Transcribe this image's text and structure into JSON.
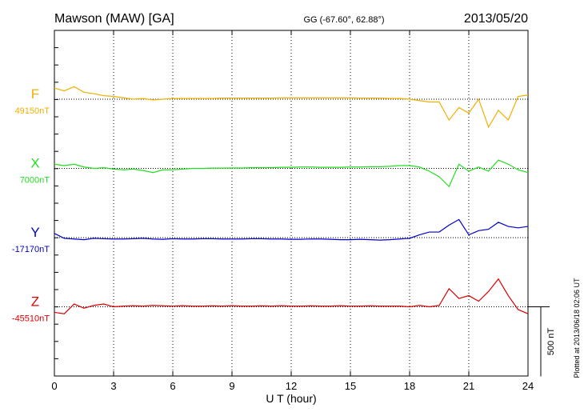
{
  "chart_data": {
    "type": "line",
    "title": "Mawson (MAW)  [GA]",
    "subtitle": "GG (-67.60°,  62.88°)",
    "date": "2013/05/20",
    "xlabel": "U T (hour)",
    "note": "Plotted at 2013/06/18 02:06 UT",
    "scale_bar": {
      "value": 500,
      "label": "500 nT"
    },
    "xlim": [
      0,
      24
    ],
    "xticks": [
      0,
      3,
      6,
      9,
      12,
      15,
      18,
      21,
      24
    ],
    "grid": true,
    "x": [
      0,
      0.5,
      1,
      1.5,
      2,
      2.5,
      3,
      3.5,
      4,
      4.5,
      5,
      5.5,
      6,
      6.5,
      7,
      7.5,
      8,
      8.5,
      9,
      9.5,
      10,
      10.5,
      11,
      11.5,
      12,
      12.5,
      13,
      13.5,
      14,
      14.5,
      15,
      15.5,
      16,
      16.5,
      17,
      17.5,
      18,
      18.5,
      19,
      19.5,
      20,
      20.5,
      21,
      21.5,
      22,
      22.5,
      23,
      23.5,
      24
    ],
    "series": [
      {
        "name": "F",
        "color": "#f0b000",
        "baseline": {
          "value": 49150,
          "label": "49150nT"
        },
        "values": [
          49230,
          49210,
          49240,
          49200,
          49190,
          49175,
          49170,
          49160,
          49150,
          49155,
          49145,
          49150,
          49155,
          49155,
          49155,
          49155,
          49155,
          49158,
          49158,
          49158,
          49158,
          49158,
          49158,
          49160,
          49160,
          49160,
          49160,
          49160,
          49160,
          49160,
          49160,
          49158,
          49158,
          49158,
          49155,
          49155,
          49150,
          49140,
          49130,
          49130,
          49000,
          49090,
          49050,
          49150,
          48950,
          49070,
          49000,
          49170,
          49180
        ]
      },
      {
        "name": "X",
        "color": "#22dd22",
        "baseline": {
          "value": 7000,
          "label": "7000nT"
        },
        "values": [
          7030,
          7020,
          7030,
          7010,
          7000,
          7005,
          6995,
          6990,
          6995,
          6985,
          6970,
          6990,
          6990,
          6995,
          7000,
          7000,
          7002,
          7002,
          7003,
          7003,
          7005,
          7005,
          7005,
          7008,
          7008,
          7010,
          7010,
          7008,
          7008,
          7008,
          7010,
          7010,
          7012,
          7012,
          7015,
          7020,
          7020,
          7010,
          6980,
          6940,
          6870,
          7030,
          6980,
          7010,
          6980,
          7060,
          7030,
          6990,
          6970
        ]
      },
      {
        "name": "Y",
        "color": "#0000cc",
        "baseline": {
          "value": -17170,
          "label": "-17170nT"
        },
        "values": [
          -17140,
          -17175,
          -17180,
          -17185,
          -17175,
          -17178,
          -17180,
          -17180,
          -17178,
          -17175,
          -17180,
          -17182,
          -17178,
          -17180,
          -17180,
          -17178,
          -17178,
          -17180,
          -17180,
          -17180,
          -17178,
          -17178,
          -17180,
          -17180,
          -17182,
          -17182,
          -17180,
          -17180,
          -17182,
          -17185,
          -17185,
          -17182,
          -17185,
          -17188,
          -17185,
          -17180,
          -17175,
          -17150,
          -17130,
          -17130,
          -17080,
          -17040,
          -17150,
          -17120,
          -17110,
          -17060,
          -17090,
          -17100,
          -17090
        ]
      },
      {
        "name": "Z",
        "color": "#dd0000",
        "baseline": {
          "value": -45510,
          "label": "-45510nT"
        },
        "values": [
          -45550,
          -45560,
          -45490,
          -45520,
          -45500,
          -45490,
          -45510,
          -45505,
          -45502,
          -45505,
          -45500,
          -45503,
          -45505,
          -45502,
          -45505,
          -45505,
          -45503,
          -45505,
          -45502,
          -45505,
          -45505,
          -45503,
          -45505,
          -45502,
          -45505,
          -45505,
          -45503,
          -45505,
          -45505,
          -45502,
          -45505,
          -45505,
          -45503,
          -45505,
          -45505,
          -45505,
          -45510,
          -45500,
          -45510,
          -45500,
          -45380,
          -45450,
          -45430,
          -45470,
          -45400,
          -45310,
          -45430,
          -45530,
          -45560
        ]
      }
    ]
  }
}
